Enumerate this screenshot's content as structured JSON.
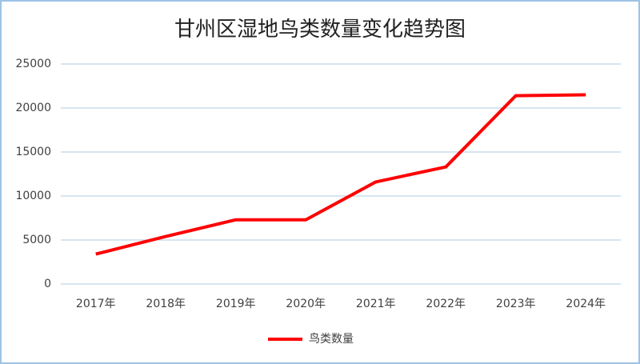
{
  "chart_data": {
    "type": "line",
    "title": "甘州区湿地鸟类数量变化趋势图",
    "categories": [
      "2017年",
      "2018年",
      "2019年",
      "2020年",
      "2021年",
      "2022年",
      "2023年",
      "2024年"
    ],
    "series": [
      {
        "name": "鸟类数量",
        "color": "#ff0000",
        "values": [
          3400,
          5400,
          7300,
          7300,
          11600,
          13300,
          21400,
          21500
        ]
      }
    ],
    "ylim": [
      0,
      25000
    ],
    "yticks": [
      0,
      5000,
      10000,
      15000,
      20000,
      25000
    ],
    "grid": true,
    "legend": "bottom"
  }
}
